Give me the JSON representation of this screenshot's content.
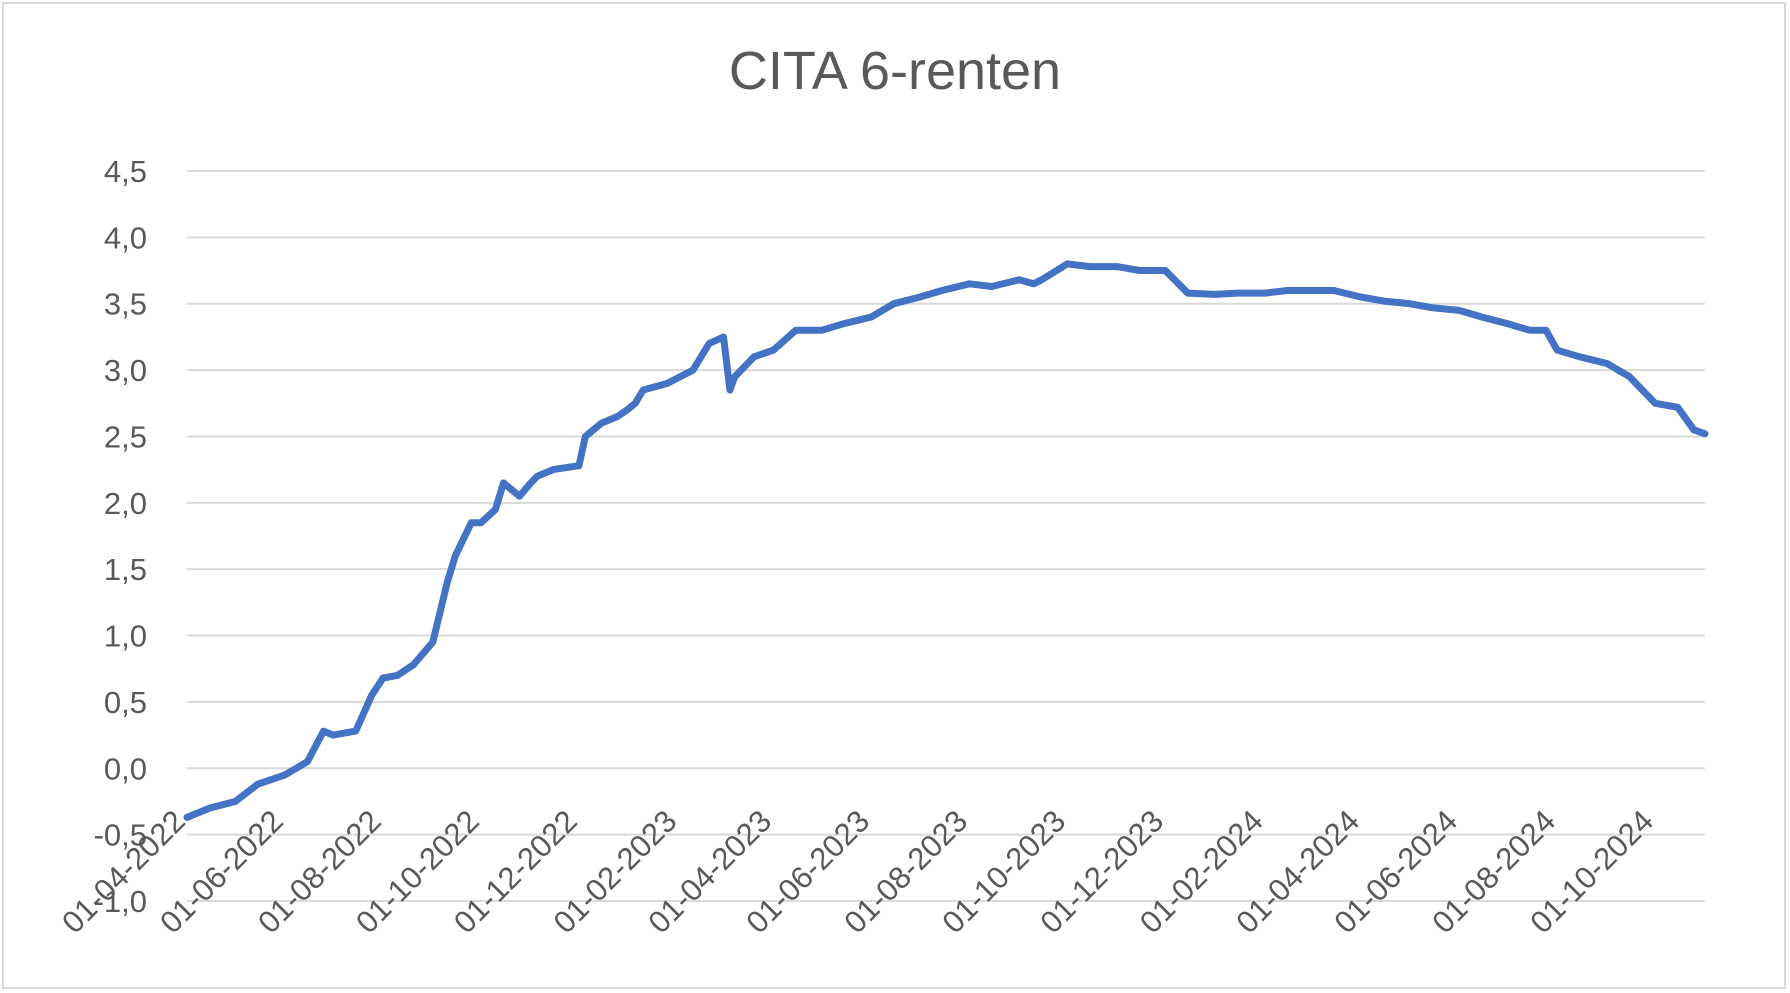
{
  "chart_data": {
    "type": "line",
    "title": "CITA 6-renten",
    "xlabel": "",
    "ylabel": "",
    "ylim": [
      -1.0,
      4.5
    ],
    "yticks": [
      "-1,0",
      "-0,5",
      "0,0",
      "0,5",
      "1,0",
      "1,5",
      "2,0",
      "2,5",
      "3,0",
      "3,5",
      "4,0",
      "4,5"
    ],
    "xlim": [
      "2022-04-01",
      "2024-11-01"
    ],
    "xticks": [
      "01-04-2022",
      "01-06-2022",
      "01-08-2022",
      "01-10-2022",
      "01-12-2022",
      "01-02-2023",
      "01-04-2023",
      "01-06-2023",
      "01-08-2023",
      "01-10-2023",
      "01-12-2023",
      "01-02-2024",
      "01-04-2024",
      "01-06-2024",
      "01-08-2024",
      "01-10-2024"
    ],
    "grid": true,
    "legend": "none",
    "line_color": "#4472c4",
    "series": [
      {
        "x": [
          "2022-04-01",
          "2022-04-15",
          "2022-05-01",
          "2022-05-15",
          "2022-06-01",
          "2022-06-15",
          "2022-06-25",
          "2022-07-01",
          "2022-07-15",
          "2022-07-25",
          "2022-08-01",
          "2022-08-10",
          "2022-08-20",
          "2022-09-01",
          "2022-09-10",
          "2022-09-15",
          "2022-09-25",
          "2022-10-01",
          "2022-10-10",
          "2022-10-15",
          "2022-10-25",
          "2022-11-01",
          "2022-11-05",
          "2022-11-15",
          "2022-12-01",
          "2022-12-05",
          "2022-12-15",
          "2022-12-25",
          "2022-12-31",
          "2023-01-05",
          "2023-01-10",
          "2023-01-25",
          "2023-02-10",
          "2023-02-20",
          "2023-03-01",
          "2023-03-05",
          "2023-03-08",
          "2023-03-12",
          "2023-03-16",
          "2023-03-20",
          "2023-04-01",
          "2023-04-15",
          "2023-05-01",
          "2023-05-15",
          "2023-06-01",
          "2023-06-15",
          "2023-07-01",
          "2023-07-15",
          "2023-08-01",
          "2023-08-15",
          "2023-09-01",
          "2023-09-10",
          "2023-09-15",
          "2023-10-01",
          "2023-10-15",
          "2023-11-01",
          "2023-11-15",
          "2023-12-01",
          "2023-12-15",
          "2024-01-01",
          "2024-01-15",
          "2024-02-01",
          "2024-02-15",
          "2024-03-01",
          "2024-03-15",
          "2024-04-01",
          "2024-04-15",
          "2024-05-01",
          "2024-05-15",
          "2024-06-01",
          "2024-06-15",
          "2024-07-01",
          "2024-07-15",
          "2024-07-25",
          "2024-08-01",
          "2024-08-15",
          "2024-09-01",
          "2024-09-15",
          "2024-10-01",
          "2024-10-15",
          "2024-10-25",
          "2024-11-01"
        ],
        "y": [
          -0.37,
          -0.3,
          -0.25,
          -0.12,
          -0.05,
          0.05,
          0.28,
          0.25,
          0.28,
          0.55,
          0.68,
          0.7,
          0.78,
          0.95,
          1.4,
          1.6,
          1.85,
          1.85,
          1.95,
          2.15,
          2.05,
          2.15,
          2.2,
          2.25,
          2.28,
          2.5,
          2.6,
          2.65,
          2.7,
          2.75,
          2.85,
          2.9,
          3.0,
          3.2,
          3.25,
          2.85,
          2.95,
          3.0,
          3.05,
          3.1,
          3.15,
          3.3,
          3.3,
          3.35,
          3.4,
          3.5,
          3.55,
          3.6,
          3.65,
          3.63,
          3.68,
          3.65,
          3.68,
          3.8,
          3.78,
          3.78,
          3.75,
          3.75,
          3.58,
          3.57,
          3.58,
          3.58,
          3.6,
          3.6,
          3.6,
          3.55,
          3.52,
          3.5,
          3.47,
          3.45,
          3.4,
          3.35,
          3.3,
          3.3,
          3.15,
          3.1,
          3.05,
          2.95,
          2.75,
          2.72,
          2.55,
          2.52
        ]
      }
    ]
  }
}
